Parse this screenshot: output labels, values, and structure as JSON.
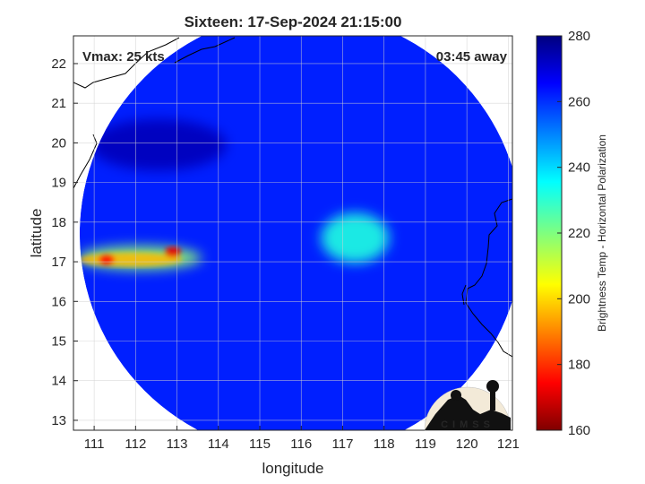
{
  "chart_data": {
    "type": "heatmap",
    "title": "Sixteen: 17-Sep-2024 21:15:00",
    "xlabel": "longitude",
    "ylabel": "latitude",
    "xlim": [
      110.5,
      121.1
    ],
    "ylim": [
      12.75,
      22.7
    ],
    "xticks": [
      111,
      112,
      113,
      114,
      115,
      116,
      117,
      118,
      119,
      120,
      121
    ],
    "yticks": [
      13,
      14,
      15,
      16,
      17,
      18,
      19,
      20,
      21,
      22
    ],
    "grid": true,
    "annotations": {
      "vmax": "Vmax: 25 kts",
      "time_away": "03:45 away"
    },
    "colorbar": {
      "label": "Brightness Temp - Horizontal Polarization",
      "range": [
        160,
        280
      ],
      "ticks": [
        160,
        180,
        200,
        220,
        240,
        260,
        280
      ],
      "colormap": "jet"
    },
    "swath": {
      "center": [
        116,
        17.7
      ],
      "radius_deg": 5.35
    },
    "background_tb": 262,
    "features": [
      {
        "name": "cold rain band",
        "lon": [
          110.6,
          113.6
        ],
        "lat": [
          16.8,
          17.4
        ],
        "tb_min": 168
      },
      {
        "name": "convection near 112.8E",
        "lon": 112.9,
        "lat": 17.25,
        "tb": 172
      },
      {
        "name": "convection near 111.3E",
        "lon": 111.3,
        "lat": 17.05,
        "tb": 175
      },
      {
        "name": "circulation center",
        "lon": 117.3,
        "lat": 17.6,
        "tb": 232
      },
      {
        "name": "land mass (north)",
        "lon": [
          110.9,
          114.2
        ],
        "lat": [
          19.3,
          20.6
        ],
        "tb": 273
      }
    ]
  },
  "logo": {
    "text": "CIMSS"
  },
  "colors": {
    "warm": "#7f0000",
    "background": "#1a4fd9",
    "land": "#0c2a8c"
  }
}
